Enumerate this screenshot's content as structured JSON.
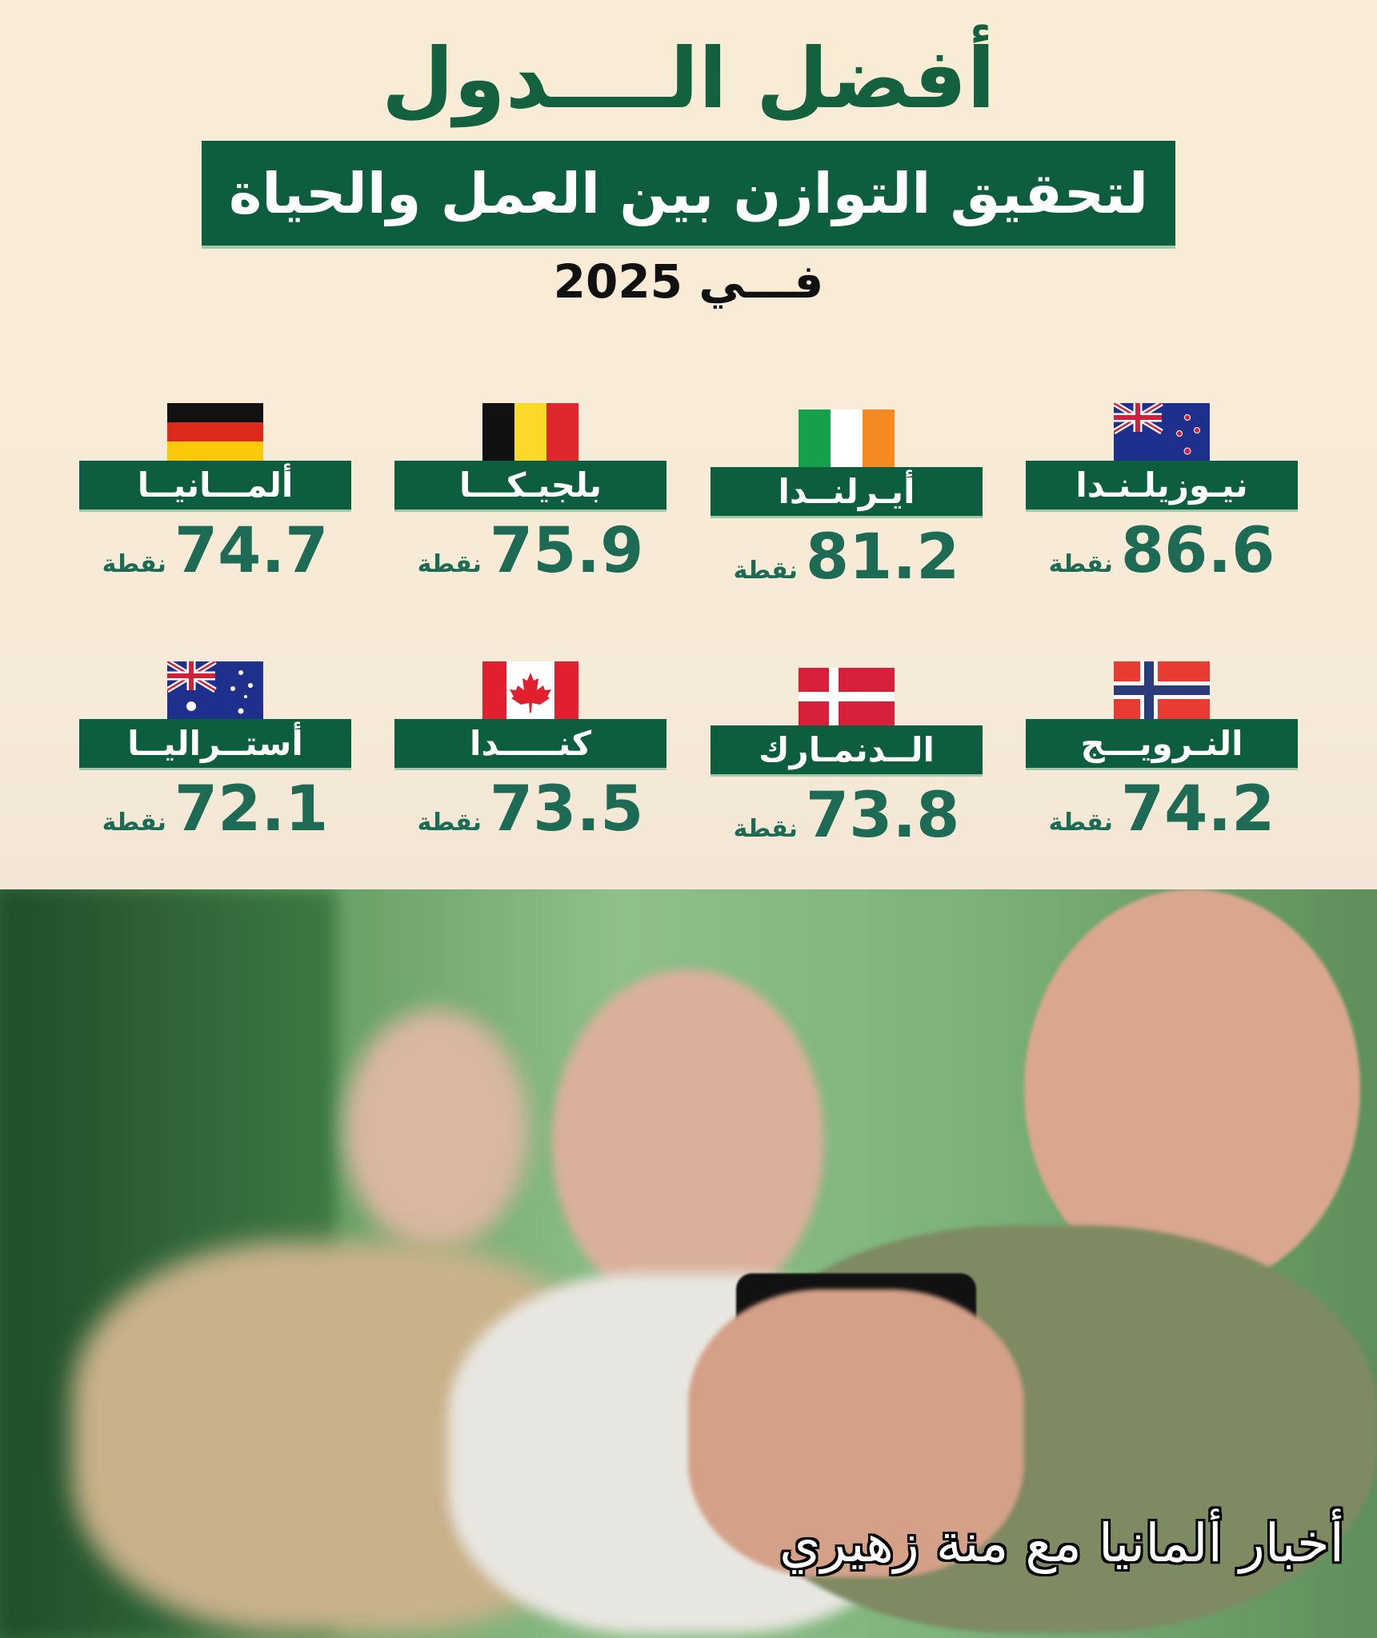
{
  "header": {
    "title": "أفضل الــــدول",
    "subtitle": "لتحقيق التوازن بين العمل والحياة",
    "year_line": "فـــي 2025"
  },
  "unit_label": "نقطة",
  "countries": [
    {
      "name": "نيـوزيلـنـدا",
      "score": "86.6",
      "flag": "new-zealand"
    },
    {
      "name": "أيـرلنــدا",
      "score": "81.2",
      "flag": "ireland"
    },
    {
      "name": "بلجيـكـــا",
      "score": "75.9",
      "flag": "belgium"
    },
    {
      "name": "ألمـــانيــا",
      "score": "74.7",
      "flag": "germany"
    },
    {
      "name": "النـرويـــج",
      "score": "74.2",
      "flag": "norway"
    },
    {
      "name": "الــدنمـارك",
      "score": "73.8",
      "flag": "denmark"
    },
    {
      "name": "كنـــــدا",
      "score": "73.5",
      "flag": "canada"
    },
    {
      "name": "أستــراليــا",
      "score": "72.1",
      "flag": "australia"
    }
  ],
  "colors": {
    "primary_green": "#0c5e3f",
    "score_green": "#1d6b55",
    "background": "#f8ecd6"
  },
  "photo": {
    "caption": "أخبار ألمانيا مع منة زهيري"
  }
}
